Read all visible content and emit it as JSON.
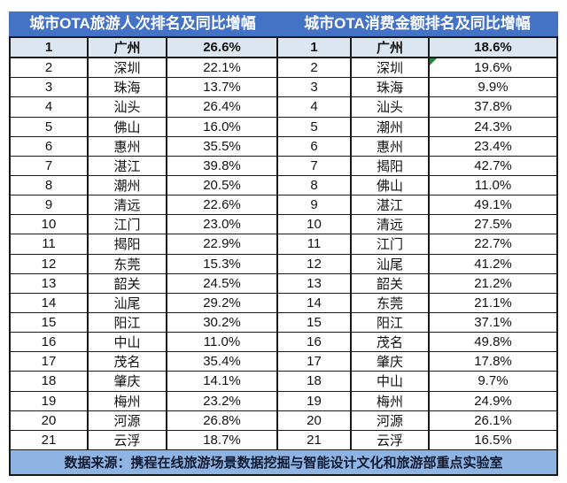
{
  "header": {
    "left_title": "城市OTA旅游人次排名及同比增幅",
    "right_title": "城市OTA消费金额排名及同比增幅"
  },
  "footer": {
    "source": "数据来源：携程在线旅游场景数据挖掘与智能设计文化和旅游部重点实验室"
  },
  "colors": {
    "header_bg": "#4472C4",
    "header_text": "#FFFFFF",
    "first_row_bg": "#DCE6F1",
    "footer_bg": "#8DB4E2",
    "border": "#1A1A1A",
    "body_text": "#121212",
    "footer_text": "#101A30",
    "marker_green": "#1E8E3E"
  },
  "error_marker": {
    "table_index": 1,
    "row_index": 1,
    "cell": "pct",
    "icon": "excel-error-triangle"
  },
  "chart_data": [
    {
      "type": "table",
      "title": "城市OTA旅游人次排名及同比增幅",
      "rows": [
        [
          "1",
          "广州",
          "26.6%"
        ],
        [
          "2",
          "深圳",
          "22.1%"
        ],
        [
          "3",
          "珠海",
          "13.7%"
        ],
        [
          "4",
          "汕头",
          "26.4%"
        ],
        [
          "5",
          "佛山",
          "16.0%"
        ],
        [
          "6",
          "惠州",
          "35.5%"
        ],
        [
          "7",
          "湛江",
          "39.8%"
        ],
        [
          "8",
          "潮州",
          "20.5%"
        ],
        [
          "9",
          "清远",
          "22.6%"
        ],
        [
          "10",
          "江门",
          "23.0%"
        ],
        [
          "11",
          "揭阳",
          "22.9%"
        ],
        [
          "12",
          "东莞",
          "15.3%"
        ],
        [
          "13",
          "韶关",
          "24.5%"
        ],
        [
          "14",
          "汕尾",
          "29.2%"
        ],
        [
          "15",
          "阳江",
          "30.2%"
        ],
        [
          "16",
          "中山",
          "11.0%"
        ],
        [
          "17",
          "茂名",
          "35.4%"
        ],
        [
          "18",
          "肇庆",
          "14.1%"
        ],
        [
          "19",
          "梅州",
          "23.2%"
        ],
        [
          "20",
          "河源",
          "26.8%"
        ],
        [
          "21",
          "云浮",
          "18.7%"
        ]
      ]
    },
    {
      "type": "table",
      "title": "城市OTA消费金额排名及同比增幅",
      "rows": [
        [
          "1",
          "广州",
          "18.6%"
        ],
        [
          "2",
          "深圳",
          "19.6%"
        ],
        [
          "3",
          "珠海",
          "9.9%"
        ],
        [
          "4",
          "汕头",
          "37.8%"
        ],
        [
          "5",
          "潮州",
          "24.3%"
        ],
        [
          "6",
          "惠州",
          "23.4%"
        ],
        [
          "7",
          "揭阳",
          "42.7%"
        ],
        [
          "8",
          "佛山",
          "11.0%"
        ],
        [
          "9",
          "湛江",
          "49.1%"
        ],
        [
          "10",
          "清远",
          "27.5%"
        ],
        [
          "11",
          "江门",
          "22.7%"
        ],
        [
          "12",
          "汕尾",
          "41.2%"
        ],
        [
          "13",
          "韶关",
          "21.2%"
        ],
        [
          "14",
          "东莞",
          "21.1%"
        ],
        [
          "15",
          "阳江",
          "37.1%"
        ],
        [
          "16",
          "茂名",
          "49.8%"
        ],
        [
          "17",
          "肇庆",
          "17.8%"
        ],
        [
          "18",
          "中山",
          "9.7%"
        ],
        [
          "19",
          "梅州",
          "24.9%"
        ],
        [
          "20",
          "河源",
          "26.1%"
        ],
        [
          "21",
          "云浮",
          "16.5%"
        ]
      ]
    }
  ]
}
